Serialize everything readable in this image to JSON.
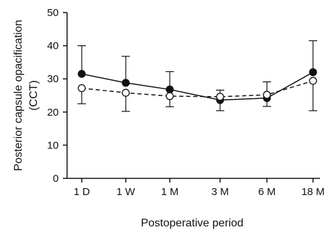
{
  "chart_data": {
    "type": "line",
    "title": "",
    "xlabel": "Postoperative period",
    "ylabel_line1": "Posterior capsule opacification",
    "ylabel_line2": "(CCT)",
    "categories": [
      "1 D",
      "1 W",
      "1 M",
      "3 M",
      "6 M",
      "18 M"
    ],
    "ylim": [
      0,
      50
    ],
    "yticks": [
      0,
      10,
      20,
      30,
      40,
      50
    ],
    "grid": false,
    "series": [
      {
        "marker": "filled-circle",
        "line_style": "solid",
        "color": "#111111",
        "values": [
          31.5,
          28.8,
          26.8,
          23.6,
          24.2,
          32.0
        ],
        "error_plus": [
          8.5,
          8.0,
          5.4,
          3.0,
          4.9,
          9.5
        ],
        "error_minus": [
          0,
          0,
          0,
          0,
          0,
          0
        ]
      },
      {
        "marker": "open-circle",
        "line_style": "dashed",
        "color": "#111111",
        "values": [
          27.2,
          25.8,
          24.8,
          24.6,
          25.2,
          29.4
        ],
        "error_plus": [
          0,
          0,
          0,
          0,
          0,
          0
        ],
        "error_minus": [
          4.7,
          5.6,
          3.2,
          4.2,
          3.5,
          9.0
        ]
      }
    ]
  }
}
